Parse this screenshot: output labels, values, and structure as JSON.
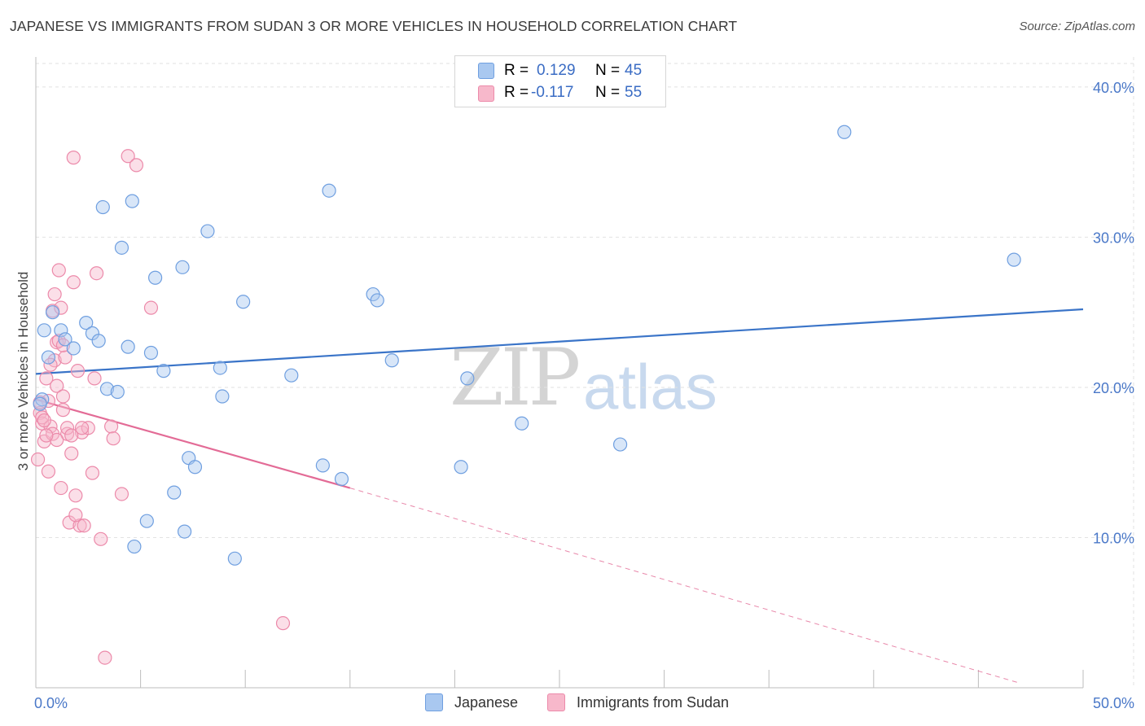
{
  "header": {
    "title": "JAPANESE VS IMMIGRANTS FROM SUDAN 3 OR MORE VEHICLES IN HOUSEHOLD CORRELATION CHART",
    "source": "Source: ZipAtlas.com"
  },
  "watermark": {
    "zip": "ZIP",
    "atlas": "atlas"
  },
  "legend": {
    "r_label": "R =",
    "n_label": "N =",
    "rows": [
      {
        "series": "Japanese",
        "r": "0.129",
        "n": "45",
        "color": "#a9c8f0"
      },
      {
        "series": "Immigrants from Sudan",
        "r": "-0.117",
        "n": "55",
        "color": "#f7b8cb"
      }
    ]
  },
  "bottom_legend": [
    "Japanese",
    "Immigrants from Sudan"
  ],
  "colors": {
    "japanese_fill": "#a9c8f0",
    "japanese_stroke": "#6f9fe0",
    "japanese_line": "#3a74c8",
    "sudan_fill": "#f7b8cb",
    "sudan_stroke": "#ec8aaa",
    "sudan_line": "#e36b96",
    "grid": "#e2e2e2",
    "tick_text": "#4a78c8"
  },
  "chart_data": {
    "type": "scatter",
    "title": "JAPANESE VS IMMIGRANTS FROM SUDAN 3 OR MORE VEHICLES IN HOUSEHOLD CORRELATION CHART",
    "xlabel": "",
    "ylabel": "3 or more Vehicles in Household",
    "xlim": [
      0,
      50
    ],
    "ylim": [
      0,
      42
    ],
    "x_tick_labels": [
      "0.0%",
      "50.0%"
    ],
    "y_ticks": [
      10,
      20,
      30,
      40
    ],
    "y_tick_labels": [
      "10.0%",
      "20.0%",
      "30.0%",
      "40.0%"
    ],
    "grid": true,
    "series": [
      {
        "name": "Japanese",
        "r": 0.129,
        "n": 45,
        "trend": {
          "x": [
            0,
            50
          ],
          "y": [
            20.9,
            25.2
          ],
          "style": "solid"
        },
        "points": [
          [
            0.4,
            23.8
          ],
          [
            0.3,
            19.2
          ],
          [
            0.6,
            22.0
          ],
          [
            0.8,
            25.0
          ],
          [
            1.2,
            23.8
          ],
          [
            1.4,
            23.2
          ],
          [
            1.8,
            22.6
          ],
          [
            2.4,
            24.3
          ],
          [
            2.7,
            23.6
          ],
          [
            3.0,
            23.1
          ],
          [
            3.2,
            32.0
          ],
          [
            3.4,
            19.9
          ],
          [
            3.9,
            19.7
          ],
          [
            4.1,
            29.3
          ],
          [
            4.4,
            22.7
          ],
          [
            4.6,
            32.4
          ],
          [
            4.7,
            9.4
          ],
          [
            5.3,
            11.1
          ],
          [
            5.5,
            22.3
          ],
          [
            5.7,
            27.3
          ],
          [
            6.1,
            21.1
          ],
          [
            6.6,
            13.0
          ],
          [
            7.0,
            28.0
          ],
          [
            7.1,
            10.4
          ],
          [
            7.3,
            15.3
          ],
          [
            7.6,
            14.7
          ],
          [
            8.2,
            30.4
          ],
          [
            8.8,
            21.3
          ],
          [
            8.9,
            19.4
          ],
          [
            9.5,
            8.6
          ],
          [
            9.9,
            25.7
          ],
          [
            12.2,
            20.8
          ],
          [
            13.7,
            14.8
          ],
          [
            14.0,
            33.1
          ],
          [
            14.6,
            13.9
          ],
          [
            16.1,
            26.2
          ],
          [
            16.3,
            25.8
          ],
          [
            17.0,
            21.8
          ],
          [
            20.3,
            14.7
          ],
          [
            20.6,
            20.6
          ],
          [
            23.2,
            17.6
          ],
          [
            27.9,
            16.2
          ],
          [
            38.6,
            37.0
          ],
          [
            46.7,
            28.5
          ],
          [
            0.2,
            18.9
          ]
        ]
      },
      {
        "name": "Immigrants from Sudan",
        "r": -0.117,
        "n": 55,
        "trend": {
          "x": [
            0,
            15.0
          ],
          "y": [
            19.2,
            13.3
          ],
          "style": "solid",
          "extension": {
            "x": [
              15.0,
              47.0
            ],
            "y": [
              13.3,
              0.3
            ],
            "style": "dashed"
          }
        },
        "points": [
          [
            0.1,
            15.2
          ],
          [
            0.2,
            18.3
          ],
          [
            0.3,
            17.6
          ],
          [
            0.4,
            16.4
          ],
          [
            0.5,
            20.6
          ],
          [
            0.6,
            14.4
          ],
          [
            0.7,
            17.4
          ],
          [
            0.8,
            16.9
          ],
          [
            0.9,
            21.8
          ],
          [
            1.0,
            20.1
          ],
          [
            1.0,
            23.0
          ],
          [
            1.1,
            27.8
          ],
          [
            1.2,
            13.3
          ],
          [
            1.3,
            18.5
          ],
          [
            1.4,
            22.0
          ],
          [
            1.5,
            16.9
          ],
          [
            1.6,
            11.0
          ],
          [
            1.7,
            15.6
          ],
          [
            1.8,
            27.0
          ],
          [
            1.9,
            12.8
          ],
          [
            2.0,
            21.1
          ],
          [
            2.1,
            10.8
          ],
          [
            2.2,
            17.0
          ],
          [
            2.3,
            10.8
          ],
          [
            2.5,
            17.3
          ],
          [
            2.7,
            14.3
          ],
          [
            2.8,
            20.6
          ],
          [
            2.9,
            27.6
          ],
          [
            3.1,
            9.9
          ],
          [
            3.3,
            2.0
          ],
          [
            3.6,
            17.4
          ],
          [
            3.7,
            16.6
          ],
          [
            4.1,
            12.9
          ],
          [
            4.4,
            35.4
          ],
          [
            4.8,
            34.8
          ],
          [
            5.5,
            25.3
          ],
          [
            11.8,
            4.3
          ],
          [
            0.3,
            18.0
          ],
          [
            0.6,
            19.1
          ],
          [
            0.8,
            25.1
          ],
          [
            1.0,
            16.5
          ],
          [
            1.1,
            23.1
          ],
          [
            1.3,
            19.4
          ],
          [
            1.5,
            17.3
          ],
          [
            1.7,
            16.8
          ],
          [
            1.9,
            11.5
          ],
          [
            2.2,
            17.3
          ],
          [
            0.2,
            19.0
          ],
          [
            0.4,
            17.8
          ],
          [
            0.5,
            16.8
          ],
          [
            0.7,
            21.5
          ],
          [
            0.9,
            26.2
          ],
          [
            1.2,
            25.3
          ],
          [
            1.8,
            35.3
          ],
          [
            1.3,
            22.8
          ]
        ]
      }
    ]
  }
}
